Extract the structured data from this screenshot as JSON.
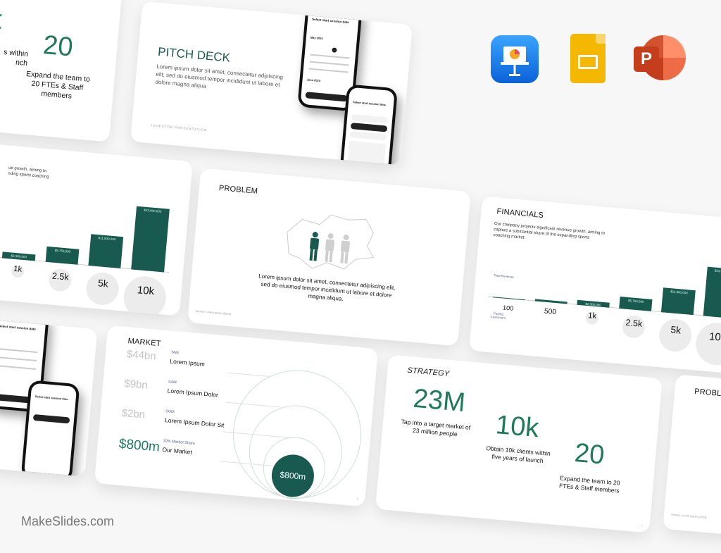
{
  "brand": {
    "watermark": "MakeSlides.com",
    "accent": "#1f7a5a",
    "bar_color": "#185a50"
  },
  "app_icons": [
    {
      "name": "keynote-icon",
      "color": "#1d8cf8"
    },
    {
      "name": "google-slides-icon",
      "color": "#f5b800"
    },
    {
      "name": "powerpoint-icon",
      "color": "#d04423"
    }
  ],
  "strategy": {
    "title": "STRATEGY",
    "stats": [
      {
        "value": "23M",
        "caption": "Tap into a target market of 23 million people"
      },
      {
        "value": "10k",
        "caption": "Obtain 10k clients within five years of launch"
      },
      {
        "value": "20",
        "caption": "Expand the team to 20 FTEs & Staff members"
      }
    ],
    "partial_value": "k",
    "partial_caption": "s within\nnch"
  },
  "pitch_deck": {
    "title": "PITCH DECK",
    "body": "Lorem ipsum dolor sit amet, consectetur adipiscing elit, sed do eiusmod tempor incididunt ut labore et dolore magna aliqua",
    "footer": "INVESTOR PRESENTATION",
    "phone": {
      "heading": "Select start session date",
      "month1": "May 2024",
      "month2": "June 2024",
      "heading2": "Select start session time"
    }
  },
  "problem": {
    "title": "PROBLEM",
    "body": "Lorem ipsum dolor sit amet, consectetur adipiscing elit, sed do eiusmod tempor incididunt ut labore et dolore magna aliqua.",
    "source": "Source: Lorem ipsum (2024)"
  },
  "financials": {
    "title": "FINANCIALS",
    "body": "Our company projects significant revenue growth, aiming to capture a substantial share of the expanding sports coaching market.",
    "legend_revenue": "Total Revenue",
    "legend_customers": "Paying Customers",
    "partial_body": "ue growth, aiming to\nnding sports coaching",
    "bars": [
      {
        "customers": "100",
        "revenue": 230000,
        "label": ""
      },
      {
        "customers": "500",
        "revenue": 1150000,
        "label": "$1,150,000"
      },
      {
        "customers": "1k",
        "revenue": 2300000,
        "label": "$2,300,000"
      },
      {
        "customers": "2.5k",
        "revenue": 5750000,
        "label": "$5,750,000"
      },
      {
        "customers": "5k",
        "revenue": 11500000,
        "label": "$11,500,000"
      },
      {
        "customers": "10k",
        "revenue": 23000000,
        "label": "$23,000,000"
      }
    ]
  },
  "market": {
    "title": "MARKET",
    "rows": [
      {
        "value": "$44bn",
        "tag": "TAM",
        "label": "Lorem Ipsum"
      },
      {
        "value": "$9bn",
        "tag": "SAM",
        "label": "Lorem Ipsum Dolor"
      },
      {
        "value": "$2bn",
        "tag": "SOM",
        "label": "Lorem Ipsum Dolor Sit"
      },
      {
        "value": "$800m",
        "tag": "10% Market Share",
        "label": "Our Market"
      }
    ],
    "circle_value": "$800m"
  }
}
